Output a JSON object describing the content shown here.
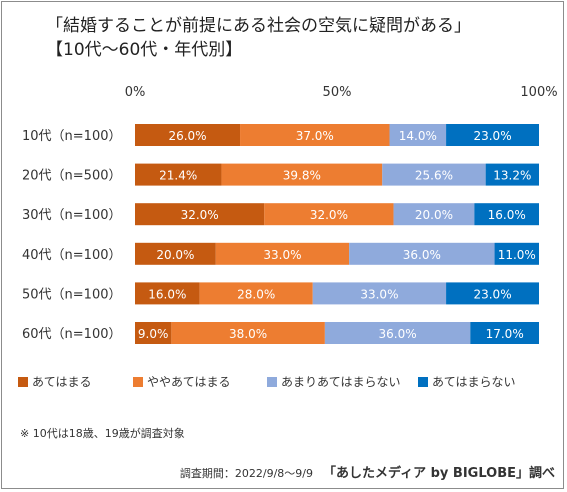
{
  "title": "「結婚することが前提にある社会の空気に疑問がある」",
  "subtitle": "【10代〜60代・年代別】",
  "footnote": "※ 10代は18歳、19歳が調査対象",
  "survey_period": "調査期間：2022/9/8〜9/9",
  "source_credit": "「あしたメディア by BIGLOBE」調べ",
  "colors": {
    "あてはまる": "#c55a11",
    "ややあてはまる": "#ed7d31",
    "あまりあてはまらない": "#8faadc",
    "あてはまらない": "#0070c0"
  },
  "chart_data": {
    "type": "bar",
    "orientation": "horizontal",
    "stacked": "percent",
    "categories": [
      "10代（n=100）",
      "20代（n=500）",
      "30代（n=100）",
      "40代（n=100）",
      "50代（n=100）",
      "60代（n=100）"
    ],
    "series": [
      {
        "name": "あてはまる",
        "values": [
          26.0,
          21.4,
          32.0,
          20.0,
          16.0,
          9.0
        ],
        "labels": [
          "26.0%",
          "21.4%",
          "32.0%",
          "20.0%",
          "16.0%",
          "9.0%"
        ]
      },
      {
        "name": "ややあてはまる",
        "values": [
          37.0,
          39.8,
          32.0,
          33.0,
          28.0,
          38.0
        ],
        "labels": [
          "37.0%",
          "39.8%",
          "32.0%",
          "33.0%",
          "28.0%",
          "38.0%"
        ]
      },
      {
        "name": "あまりあてはまらない",
        "values": [
          14.0,
          25.6,
          20.0,
          36.0,
          33.0,
          36.0
        ],
        "labels": [
          "14.0%",
          "25.6%",
          "20.0%",
          "36.0%",
          "33.0%",
          "36.0%"
        ]
      },
      {
        "name": "あてはまらない",
        "values": [
          23.0,
          13.2,
          16.0,
          11.0,
          23.0,
          17.0
        ],
        "labels": [
          "23.0%",
          "13.2%",
          "16.0%",
          "11.0%",
          "23.0%",
          "17.0%"
        ]
      }
    ],
    "x_ticks": [
      "0%",
      "50%",
      "100%"
    ],
    "xlim": [
      0,
      100
    ],
    "grid": false,
    "legend_position": "bottom"
  }
}
